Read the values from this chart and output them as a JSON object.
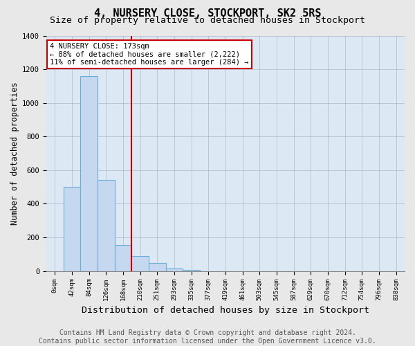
{
  "title": "4, NURSERY CLOSE, STOCKPORT, SK2 5RS",
  "subtitle": "Size of property relative to detached houses in Stockport",
  "xlabel": "Distribution of detached houses by size in Stockport",
  "ylabel": "Number of detached properties",
  "categories": [
    "0sqm",
    "42sqm",
    "84sqm",
    "126sqm",
    "168sqm",
    "210sqm",
    "251sqm",
    "293sqm",
    "335sqm",
    "377sqm",
    "419sqm",
    "461sqm",
    "503sqm",
    "545sqm",
    "587sqm",
    "629sqm",
    "670sqm",
    "712sqm",
    "754sqm",
    "796sqm",
    "838sqm"
  ],
  "values": [
    0,
    500,
    1160,
    540,
    155,
    90,
    50,
    15,
    5,
    0,
    0,
    0,
    0,
    0,
    0,
    0,
    0,
    0,
    0,
    0,
    0
  ],
  "bar_color": "#c5d8ef",
  "bar_edge_color": "#6aaed6",
  "ylim": [
    0,
    1400
  ],
  "yticks": [
    0,
    200,
    400,
    600,
    800,
    1000,
    1200,
    1400
  ],
  "red_line_index": 4.5,
  "annotation_text": "4 NURSERY CLOSE: 173sqm\n← 88% of detached houses are smaller (2,222)\n11% of semi-detached houses are larger (284) →",
  "annotation_box_color": "#cc0000",
  "footer_text": "Contains HM Land Registry data © Crown copyright and database right 2024.\nContains public sector information licensed under the Open Government Licence v3.0.",
  "title_fontsize": 11,
  "subtitle_fontsize": 9.5,
  "xlabel_fontsize": 9.5,
  "ylabel_fontsize": 8.5,
  "annotation_fontsize": 7.5,
  "footer_fontsize": 7,
  "background_color": "#e8e8e8",
  "plot_bg_color": "#dde8f5"
}
